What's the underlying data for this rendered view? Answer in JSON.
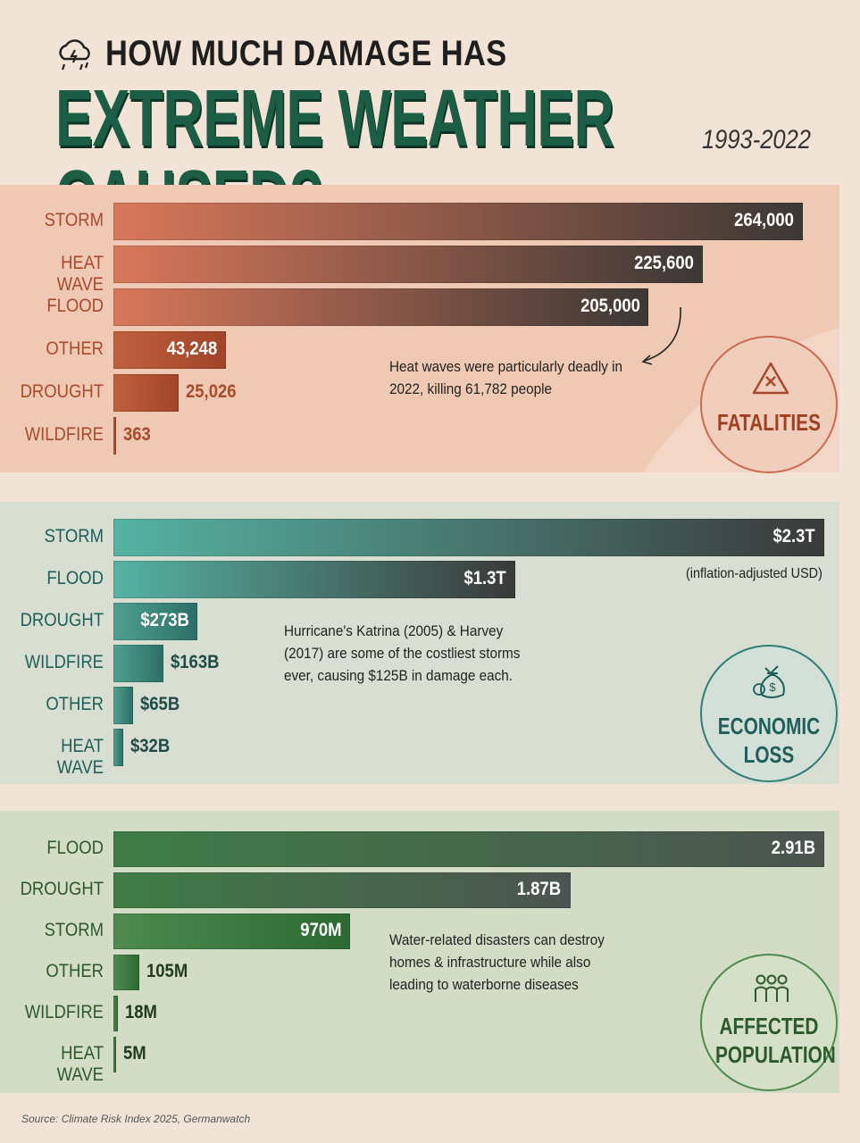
{
  "header": {
    "title_line1": "HOW MUCH DAMAGE HAS",
    "title_line2": "EXTREME WEATHER CAUSED?",
    "years": "1993-2022",
    "icon": "storm-cloud-icon"
  },
  "colors": {
    "fatalities_accent": "#a84a2c",
    "economic_accent": "#1f5e5a",
    "population_accent": "#2c5a2c",
    "title_green": "#1c5e45"
  },
  "sections": {
    "fatalities": {
      "badge": "FATALITIES",
      "badge_icon": "warning-triangle-icon",
      "note": "Heat waves were particularly deadly in 2022, killing 61,782 people",
      "units_note": ""
    },
    "economic": {
      "badge_line1": "ECONOMIC",
      "badge_line2": "LOSS",
      "badge_icon": "money-bag-icon",
      "note": "Hurricane's Katrina (2005) & Harvey (2017) are some of the costliest storms ever, causing $125B in damage each.",
      "units_note": "(inflation-adjusted USD)"
    },
    "population": {
      "badge_line1": "AFFECTED",
      "badge_line2": "POPULATION",
      "badge_icon": "people-group-icon",
      "note": "Water-related disasters can destroy homes & infrastructure while also leading to waterborne diseases"
    }
  },
  "chart_data": [
    {
      "type": "bar",
      "orientation": "horizontal",
      "title": "FATALITIES",
      "categories": [
        "STORM",
        "HEAT WAVE",
        "FLOOD",
        "OTHER",
        "DROUGHT",
        "WILDFIRE"
      ],
      "values": [
        264000,
        225600,
        205000,
        43248,
        25026,
        363
      ],
      "labels": [
        "264,000",
        "225,600",
        "205,000",
        "43,248",
        "25,026",
        "363"
      ]
    },
    {
      "type": "bar",
      "orientation": "horizontal",
      "title": "ECONOMIC LOSS",
      "categories": [
        "STORM",
        "FLOOD",
        "DROUGHT",
        "WILDFIRE",
        "OTHER",
        "HEAT WAVE"
      ],
      "values": [
        2300,
        1300,
        273,
        163,
        65,
        32
      ],
      "labels": [
        "$2.3T",
        "$1.3T",
        "$273B",
        "$163B",
        "$65B",
        "$32B"
      ]
    },
    {
      "type": "bar",
      "orientation": "horizontal",
      "title": "AFFECTED POPULATION",
      "categories": [
        "FLOOD",
        "DROUGHT",
        "STORM",
        "OTHER",
        "WILDFIRE",
        "HEAT WAVE"
      ],
      "values": [
        2910,
        1870,
        970,
        105,
        18,
        5
      ],
      "labels": [
        "2.91B",
        "1.87B",
        "970M",
        "105M",
        "18M",
        "5M"
      ]
    }
  ],
  "source": "Source: Climate Risk Index 2025, Germanwatch"
}
